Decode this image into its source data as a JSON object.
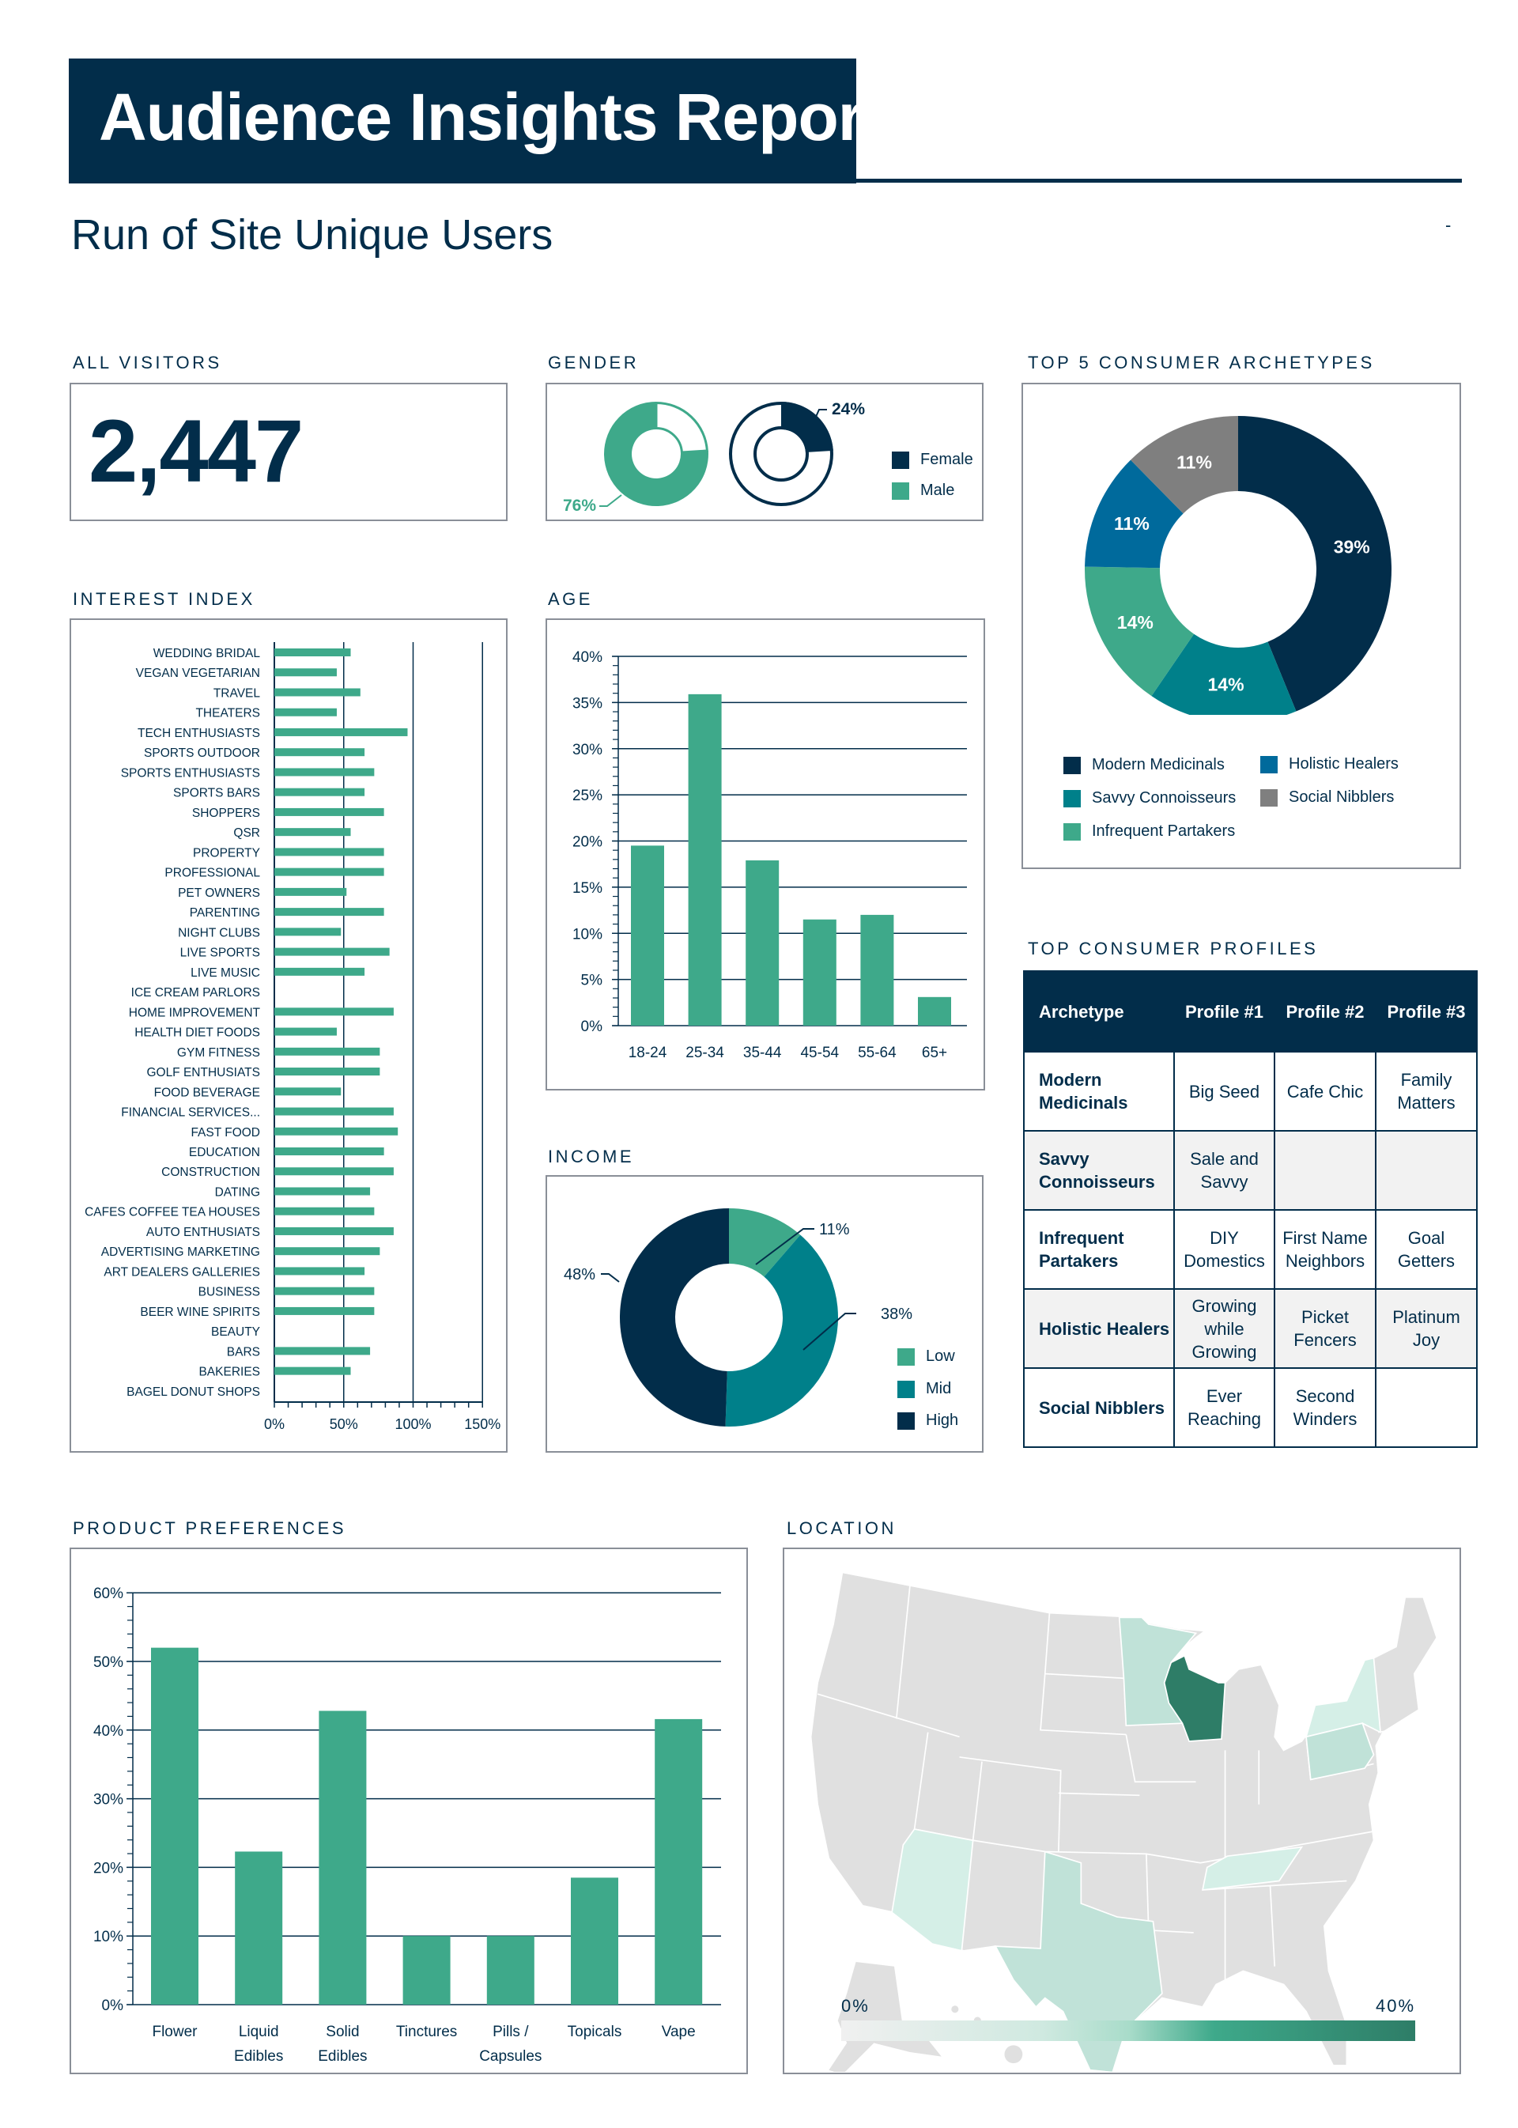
{
  "header": {
    "title": "Audience Insights Report",
    "subtitle": "Run of Site Unique Users",
    "marker": "-"
  },
  "all_visitors": {
    "label": "ALL VISITORS",
    "value": "2,447"
  },
  "gender": {
    "label": "GENDER"
  },
  "interest": {
    "label": "INTEREST INDEX"
  },
  "age": {
    "label": "AGE"
  },
  "income": {
    "label": "INCOME"
  },
  "archetypes": {
    "label": "TOP 5 CONSUMER ARCHETYPES"
  },
  "products": {
    "label": "PRODUCT PREFERENCES"
  },
  "profiles": {
    "label": "TOP CONSUMER PROFILES",
    "headers": [
      "Archetype",
      "Profile #1",
      "Profile #2",
      "Profile #3"
    ],
    "rows": [
      [
        "Modern Medicinals",
        "Big Seed",
        "Cafe Chic",
        "Family Matters"
      ],
      [
        "Savvy Connoisseurs",
        "Sale and Savvy",
        "",
        ""
      ],
      [
        "Infrequent Partakers",
        "DIY Domestics",
        "First Name Neighbors",
        "Goal Getters"
      ],
      [
        "Holistic Healers",
        "Growing while Growing",
        "Picket Fencers",
        "Platinum Joy"
      ],
      [
        "Social Nibblers",
        "Ever Reaching",
        "Second Winders",
        ""
      ]
    ]
  },
  "location": {
    "label": "LOCATION",
    "scale_min": "0%",
    "scale_max": "40%",
    "scale_colors": [
      "#f0f0f0",
      "#2e7d67"
    ],
    "states": [
      {
        "state": "Wisconsin",
        "value": 36
      },
      {
        "state": "Minnesota",
        "value": 14
      },
      {
        "state": "Texas",
        "value": 14
      },
      {
        "state": "Pennsylvania",
        "value": 14
      },
      {
        "state": "New York",
        "value": 9
      },
      {
        "state": "Tennessee",
        "value": 9
      },
      {
        "state": "Arizona",
        "value": 9
      }
    ]
  },
  "colors": {
    "navy": "#022d4a",
    "green": "#3ea98a",
    "teal": "#00808a",
    "blue": "#006a9c",
    "gray": "#7f7f7f",
    "dark_green": "#2e7d67"
  },
  "chart_data": [
    {
      "type": "bar",
      "orientation": "horizontal",
      "title": "INTEREST INDEX",
      "categories": [
        "WEDDING BRIDAL",
        "VEGAN VEGETARIAN",
        "TRAVEL",
        "THEATERS",
        "TECH ENTHUSIASTS",
        "SPORTS OUTDOOR",
        "SPORTS ENTHUSIASTS",
        "SPORTS BARS",
        "SHOPPERS",
        "QSR",
        "PROPERTY",
        "PROFESSIONAL",
        "PET OWNERS",
        "PARENTING",
        "NIGHT CLUBS",
        "LIVE SPORTS",
        "LIVE MUSIC",
        "ICE CREAM PARLORS",
        "HOME IMPROVEMENT",
        "HEALTH DIET FOODS",
        "GYM FITNESS",
        "GOLF ENTHUSIATS",
        "FOOD BEVERAGE",
        "FINANCIAL SERVICES...",
        "FAST FOOD",
        "EDUCATION",
        "CONSTRUCTION",
        "DATING",
        "CAFES COFFEE TEA HOUSES",
        "AUTO ENTHUSIATS",
        "ADVERTISING MARKETING",
        "ART DEALERS GALLERIES",
        "BUSINESS",
        "BEER WINE SPIRITS",
        "BEAUTY",
        "BARS",
        "BAKERIES",
        "BAGEL DONUT SHOPS"
      ],
      "values": [
        55,
        45,
        62,
        45,
        96,
        65,
        72,
        65,
        79,
        55,
        79,
        79,
        52,
        79,
        48,
        83,
        65,
        0,
        86,
        45,
        76,
        76,
        48,
        86,
        89,
        79,
        86,
        69,
        72,
        86,
        76,
        65,
        72,
        72,
        0,
        69,
        55,
        0
      ],
      "xlim": [
        0,
        150
      ],
      "xticks": [
        "0%",
        "50%",
        "100%",
        "150%"
      ],
      "grid": true,
      "color": "#3ea98a"
    },
    {
      "type": "bar",
      "title": "AGE",
      "categories": [
        "18-24",
        "25-34",
        "35-44",
        "45-54",
        "55-64",
        "65+"
      ],
      "values": [
        19.5,
        35.9,
        17.9,
        11.5,
        12.0,
        3.1
      ],
      "ylim": [
        0,
        40
      ],
      "yticks": [
        "0%",
        "5%",
        "10%",
        "15%",
        "20%",
        "25%",
        "30%",
        "35%",
        "40%"
      ],
      "grid": true,
      "color": "#3ea98a"
    },
    {
      "type": "bar",
      "title": "PRODUCT PREFERENCES",
      "categories": [
        [
          "Flower"
        ],
        [
          "Liquid",
          "Edibles"
        ],
        [
          "Solid",
          "Edibles"
        ],
        [
          "Tinctures"
        ],
        [
          "Pills /",
          "Capsules"
        ],
        [
          "Topicals"
        ],
        [
          "Vape"
        ]
      ],
      "values": [
        52.0,
        22.3,
        42.8,
        10.0,
        10.0,
        18.5,
        41.6
      ],
      "ylim": [
        0,
        60
      ],
      "yticks": [
        "0%",
        "10%",
        "20%",
        "30%",
        "40%",
        "50%",
        "60%"
      ],
      "grid": true,
      "color": "#3ea98a"
    },
    {
      "type": "pie",
      "variant": "donut",
      "title": "GENDER",
      "series": [
        {
          "name": "Female",
          "value": 24,
          "label": "24%",
          "color": "#022d4a"
        },
        {
          "name": "Male",
          "value": 76,
          "label": "76%",
          "color": "#3ea98a"
        }
      ],
      "legend": "right"
    },
    {
      "type": "pie",
      "variant": "donut",
      "title": "TOP 5 CONSUMER ARCHETYPES",
      "series": [
        {
          "name": "Modern Medicinals",
          "value": 39,
          "label": "39%",
          "color": "#022d4a"
        },
        {
          "name": "Savvy Connoisseurs",
          "value": 14,
          "label": "14%",
          "color": "#00808a"
        },
        {
          "name": "Infrequent Partakers",
          "value": 14,
          "label": "14%",
          "color": "#3ea98a"
        },
        {
          "name": "Holistic Healers",
          "value": 11,
          "label": "11%",
          "color": "#006a9c"
        },
        {
          "name": "Social Nibblers",
          "value": 11,
          "label": "11%",
          "color": "#7f7f7f"
        }
      ],
      "legend": "bottom"
    },
    {
      "type": "pie",
      "variant": "donut",
      "title": "INCOME",
      "series": [
        {
          "name": "Low",
          "value": 11,
          "label": "11%",
          "color": "#3ea98a"
        },
        {
          "name": "Mid",
          "value": 38,
          "label": "38%",
          "color": "#00808a"
        },
        {
          "name": "High",
          "value": 48,
          "label": "48%",
          "color": "#022d4a"
        }
      ],
      "legend": "right"
    }
  ]
}
